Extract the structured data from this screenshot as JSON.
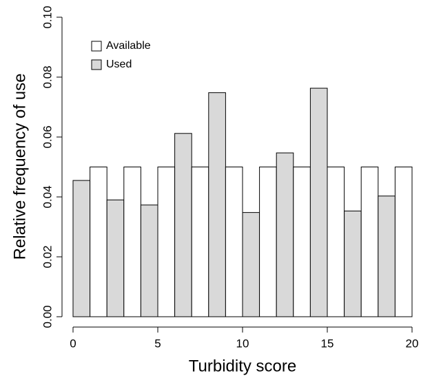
{
  "chart_data": {
    "type": "histogram",
    "x_label": "Turbidity score",
    "y_label": "Relative frequency of use",
    "bins": [
      0,
      2,
      4,
      6,
      8,
      10,
      12,
      14,
      16,
      18,
      20
    ],
    "series": [
      {
        "name": "Used",
        "color": "#d9d9d9",
        "values": [
          0.0455,
          0.039,
          0.0373,
          0.0612,
          0.0748,
          0.0348,
          0.0547,
          0.0763,
          0.0353,
          0.0403
        ]
      },
      {
        "name": "Available",
        "color": "#ffffff",
        "values": [
          0.05,
          0.05,
          0.05,
          0.05,
          0.05,
          0.05,
          0.05,
          0.05,
          0.05,
          0.05
        ]
      }
    ],
    "xlim": [
      0,
      20
    ],
    "xticks": [
      0,
      5,
      10,
      15,
      20
    ],
    "ylim": [
      0,
      0.1
    ],
    "yticks": [
      {
        "value": 0,
        "label": "0.00"
      },
      {
        "value": 0.02,
        "label": "0.02"
      },
      {
        "value": 0.04,
        "label": "0.04"
      },
      {
        "value": 0.06,
        "label": "0.06"
      },
      {
        "value": 0.08,
        "label": "0.08"
      },
      {
        "value": 0.1,
        "label": "0.10"
      }
    ],
    "legend": "top-left"
  }
}
